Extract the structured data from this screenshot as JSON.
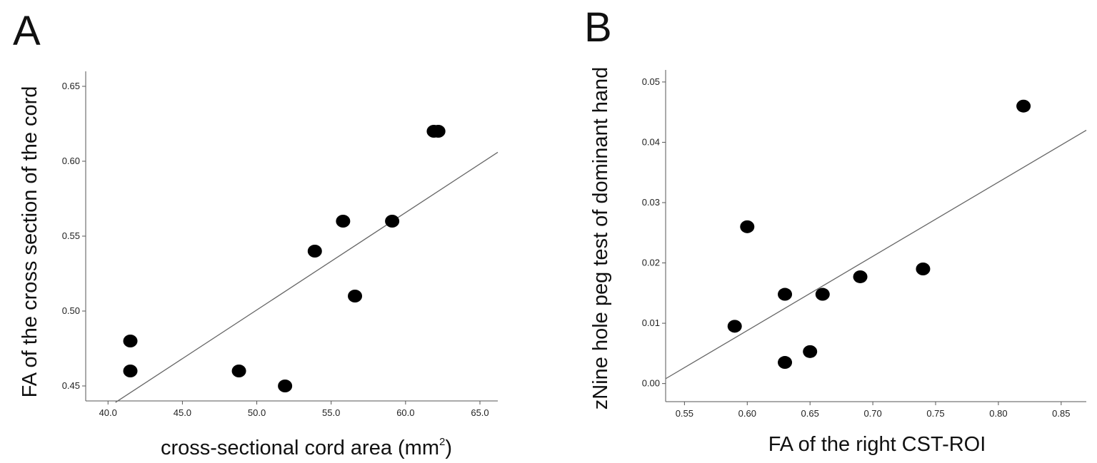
{
  "panels": [
    {
      "letter": "A"
    },
    {
      "letter": "B"
    }
  ],
  "chart_data": [
    {
      "type": "scatter",
      "panel": "A",
      "xlabel": "cross-sectional cord area (mm",
      "xlabel_superscript": "2",
      "xlabel_suffix": ")",
      "ylabel": "FA of the cross section of the cord",
      "xlim": [
        38.5,
        66.2
      ],
      "ylim": [
        0.44,
        0.66
      ],
      "xticks": [
        40.0,
        45.0,
        50.0,
        55.0,
        60.0,
        65.0
      ],
      "xtick_labels": [
        "40.0",
        "45.0",
        "50.0",
        "55.0",
        "60.0",
        "65.0"
      ],
      "yticks": [
        0.45,
        0.5,
        0.55,
        0.6,
        0.65
      ],
      "ytick_labels": [
        "0.45",
        "0.50",
        "0.55",
        "0.60",
        "0.65"
      ],
      "grid": false,
      "points": [
        {
          "x": 41.5,
          "y": 0.48
        },
        {
          "x": 41.5,
          "y": 0.46
        },
        {
          "x": 48.8,
          "y": 0.46
        },
        {
          "x": 51.9,
          "y": 0.45
        },
        {
          "x": 53.9,
          "y": 0.54
        },
        {
          "x": 55.8,
          "y": 0.56
        },
        {
          "x": 56.6,
          "y": 0.51
        },
        {
          "x": 59.1,
          "y": 0.56
        },
        {
          "x": 61.9,
          "y": 0.62
        },
        {
          "x": 62.2,
          "y": 0.62
        }
      ],
      "fit_line": {
        "x": [
          40.5,
          66.2
        ],
        "y": [
          0.439,
          0.606
        ]
      }
    },
    {
      "type": "scatter",
      "panel": "B",
      "xlabel": "FA of the right CST-ROI",
      "ylabel": "zNine hole peg test of dominant hand",
      "xlim": [
        0.535,
        0.87
      ],
      "ylim": [
        -0.003,
        0.052
      ],
      "xticks": [
        0.55,
        0.6,
        0.65,
        0.7,
        0.75,
        0.8,
        0.85
      ],
      "xtick_labels": [
        "0.55",
        "0.60",
        "0.65",
        "0.70",
        "0.75",
        "0.80",
        "0.85"
      ],
      "yticks": [
        0.0,
        0.01,
        0.02,
        0.03,
        0.04,
        0.05
      ],
      "ytick_labels": [
        "0.00",
        "0.01",
        "0.02",
        "0.03",
        "0.04",
        "0.05"
      ],
      "grid": false,
      "points": [
        {
          "x": 0.59,
          "y": 0.0095
        },
        {
          "x": 0.6,
          "y": 0.026
        },
        {
          "x": 0.63,
          "y": 0.0148
        },
        {
          "x": 0.63,
          "y": 0.0035
        },
        {
          "x": 0.65,
          "y": 0.0053
        },
        {
          "x": 0.66,
          "y": 0.0148
        },
        {
          "x": 0.69,
          "y": 0.0177
        },
        {
          "x": 0.74,
          "y": 0.019
        },
        {
          "x": 0.82,
          "y": 0.046
        }
      ],
      "fit_line": {
        "x": [
          0.535,
          0.87
        ],
        "y": [
          0.0008,
          0.042
        ]
      }
    }
  ]
}
